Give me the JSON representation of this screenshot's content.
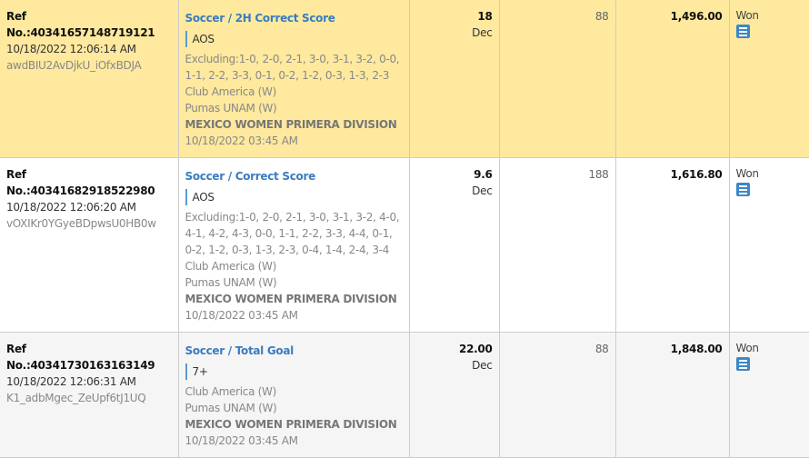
{
  "rows": [
    {
      "ref": "Ref No.:40341657148719121",
      "datetime": "10/18/2022 12:06:14 AM",
      "token": "awdBIU2AvDjkU_iOfxBDJA",
      "market": "Soccer / 2H Correct Score",
      "selection": "AOS",
      "excluding": "Excluding:1-0, 2-0, 2-1, 3-0, 3-1, 3-2, 0-0, 1-1, 2-2, 3-3, 0-1, 0-2, 1-2, 0-3, 1-3, 2-3",
      "home": "Club America (W)",
      "away": "Pumas UNAM (W)",
      "league": "MEXICO WOMEN PRIMERA DIVISION",
      "match_time": "10/18/2022 03:45 AM",
      "odds": "18",
      "odds_format": "Dec",
      "stake": "88",
      "payout": "1,496.00",
      "status": "Won",
      "icon": "receipt-icon"
    },
    {
      "ref": "Ref No.:40341682918522980",
      "datetime": "10/18/2022 12:06:20 AM",
      "token": "vOXIKr0YGyeBDpwsU0HB0w",
      "market": "Soccer / Correct Score",
      "selection": "AOS",
      "excluding": "Excluding:1-0, 2-0, 2-1, 3-0, 3-1, 3-2, 4-0, 4-1, 4-2, 4-3, 0-0, 1-1, 2-2, 3-3, 4-4, 0-1, 0-2, 1-2, 0-3, 1-3, 2-3, 0-4, 1-4, 2-4, 3-4",
      "home": "Club America (W)",
      "away": "Pumas UNAM (W)",
      "league": "MEXICO WOMEN PRIMERA DIVISION",
      "match_time": "10/18/2022 03:45 AM",
      "odds": "9.6",
      "odds_format": "Dec",
      "stake": "188",
      "payout": "1,616.80",
      "status": "Won",
      "icon": "receipt-icon"
    },
    {
      "ref": "Ref No.:40341730163163149",
      "datetime": "10/18/2022 12:06:31 AM",
      "token": "K1_adbMgec_ZeUpf6tJ1UQ",
      "market": "Soccer / Total Goal",
      "selection": "7+",
      "home": "Club America (W)",
      "away": "Pumas UNAM (W)",
      "league": "MEXICO WOMEN PRIMERA DIVISION",
      "match_time": "10/18/2022 03:45 AM",
      "odds": "22.00",
      "odds_format": "Dec",
      "stake": "88",
      "payout": "1,848.00",
      "status": "Won",
      "icon": "receipt-icon"
    }
  ]
}
